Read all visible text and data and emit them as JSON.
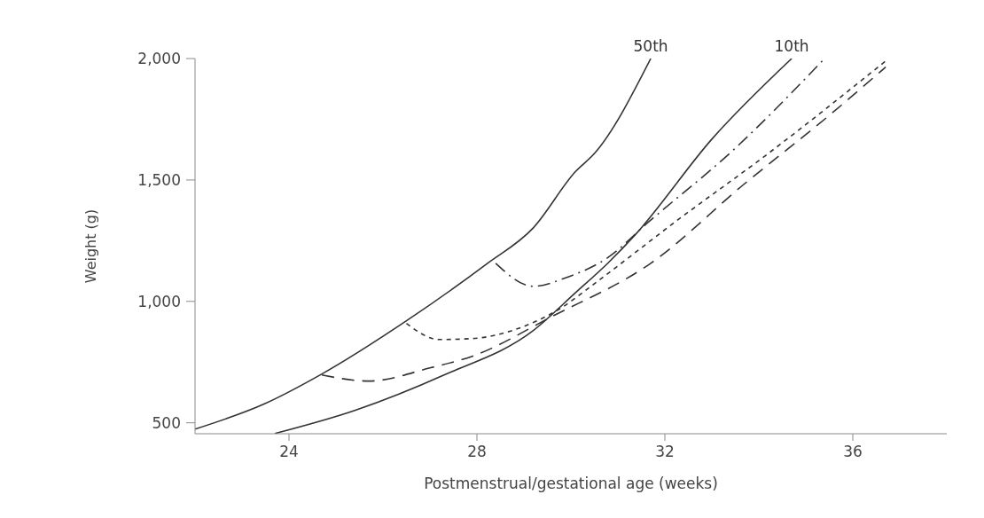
{
  "chart_data": {
    "type": "line",
    "xlabel": "Postmenstrual/gestational age (weeks)",
    "ylabel": "Weight (g)",
    "xlim": [
      22,
      38
    ],
    "xticks": [
      24,
      28,
      32,
      36
    ],
    "ylim": [
      455,
      2000
    ],
    "yticks": [
      500,
      {
        "value": 1000,
        "label": "1,000"
      },
      {
        "value": 1500,
        "label": "1,500"
      },
      {
        "value": 2000,
        "label": "2,000"
      }
    ],
    "grid": false,
    "legend": false,
    "marker": "none",
    "series": [
      {
        "name": "50th",
        "color": "#333333",
        "line_style": "solid",
        "x": [
          22,
          23.5,
          24.7,
          26.5,
          28.2,
          29.2,
          30.1,
          30.5,
          31.7
        ],
        "values": [
          474,
          580,
          701,
          920,
          1153,
          1303,
          1535,
          1609,
          2000
        ]
      },
      {
        "name": "10th",
        "color": "#333333",
        "line_style": "solid",
        "x": [
          23.7,
          25.4,
          27.3,
          29.2,
          30.1,
          30.8,
          31.4,
          33,
          34.7
        ],
        "values": [
          456,
          551,
          697,
          880,
          1036,
          1160,
          1281,
          1668,
          2000
        ]
      },
      {
        "color": "#333333",
        "line_style": "dashdot",
        "x": [
          28.4,
          29.2,
          29.9,
          30.8,
          31.6,
          33.5,
          35.4
        ],
        "values": [
          1157,
          1062,
          1098,
          1182,
          1318,
          1631,
          2000
        ]
      },
      {
        "color": "#333333",
        "line_style": "dotted",
        "x": [
          26.5,
          27.2,
          27.9,
          28.9,
          29.8,
          30.5,
          32.3,
          34.2,
          36.7
        ],
        "values": [
          909,
          843,
          847,
          890,
          974,
          1073,
          1339,
          1609,
          1990
        ]
      },
      {
        "color": "#333333",
        "line_style": "dashed",
        "x": [
          24.7,
          25.7,
          27,
          27.9,
          29.6,
          31.7,
          33.7,
          35.5,
          36.7
        ],
        "values": [
          697,
          672,
          726,
          774,
          938,
          1157,
          1485,
          1766,
          1965
        ]
      }
    ]
  }
}
